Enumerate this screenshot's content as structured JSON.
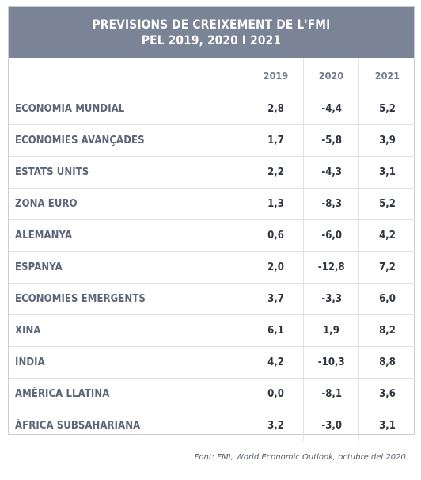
{
  "title": {
    "line1": "PREVISIONS DE CREIXEMENT DE L'FMI",
    "line2": "PEL  2019, 2020 I 2021"
  },
  "columns": [
    "2019",
    "2020",
    "2021"
  ],
  "rows": [
    {
      "label": "ECONOMIA MUNDIAL",
      "values": [
        "2,8",
        "-4,4",
        "5,2"
      ]
    },
    {
      "label": "ECONOMIES AVANÇADES",
      "values": [
        "1,7",
        "-5,8",
        "3,9"
      ]
    },
    {
      "label": "ESTATS UNITS",
      "values": [
        "2,2",
        "-4,3",
        "3,1"
      ]
    },
    {
      "label": "ZONA EURO",
      "values": [
        "1,3",
        "-8,3",
        "5,2"
      ]
    },
    {
      "label": "ALEMANYA",
      "values": [
        "0,6",
        "-6,0",
        "4,2"
      ]
    },
    {
      "label": "ESPANYA",
      "values": [
        "2,0",
        "-12,8",
        "7,2"
      ]
    },
    {
      "label": "ECONOMIES EMERGENTS",
      "values": [
        "3,7",
        "-3,3",
        "6,0"
      ]
    },
    {
      "label": "XINA",
      "values": [
        "6,1",
        "1,9",
        "8,2"
      ]
    },
    {
      "label": "ÍNDIA",
      "values": [
        "4,2",
        "-10,3",
        "8,8"
      ]
    },
    {
      "label": "AMÈRICA LLATINA",
      "values": [
        "0,0",
        "-8,1",
        "3,6"
      ]
    },
    {
      "label": "ÀFRICA SUBSAHARIANA",
      "values": [
        "3,2",
        "-3,0",
        "3,1"
      ]
    }
  ],
  "source": "Font: FMI, World Economic Outlook, octubre del 2020.",
  "colors": {
    "header_bg": "#7a8496",
    "header_text": "#ffffff",
    "label_text": "#5c6678",
    "value_text": "#2f3440",
    "grid_line": "#dfe2e7"
  }
}
